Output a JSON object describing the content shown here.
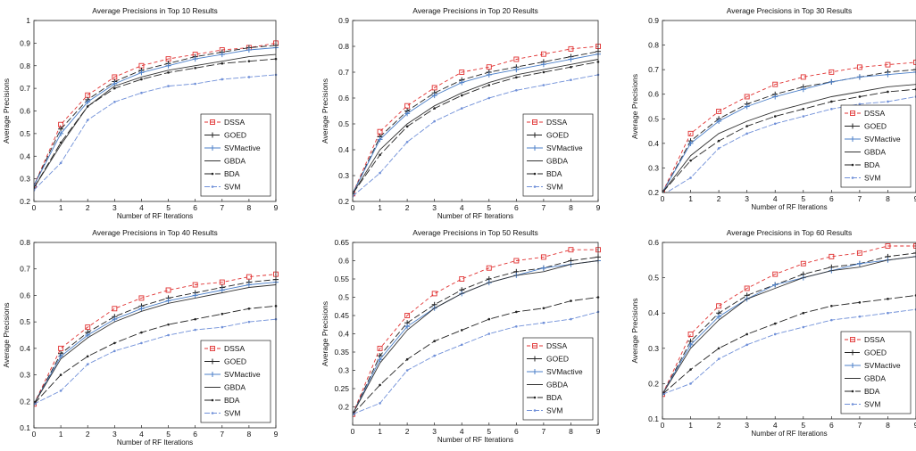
{
  "chart_data": [
    {
      "type": "line",
      "title": "Average Precisions in Top 10 Results",
      "xlabel": "Number of RF Iterations",
      "ylabel": "Average Precisions",
      "xlim": [
        0,
        9
      ],
      "ylim": [
        0.2,
        1
      ],
      "xticks": [
        "0",
        "1",
        "2",
        "3",
        "4",
        "5",
        "6",
        "7",
        "8",
        "9"
      ],
      "yticks": [
        "0.2",
        "0.3",
        "0.4",
        "0.5",
        "0.6",
        "0.7",
        "0.8",
        "0.9",
        "1"
      ],
      "legend_position": "bottom-right",
      "x": [
        0,
        1,
        2,
        3,
        4,
        5,
        6,
        7,
        8,
        9
      ],
      "series": [
        {
          "name": "DSSA",
          "color": "#e03030",
          "values": [
            0.27,
            0.54,
            0.67,
            0.75,
            0.8,
            0.83,
            0.85,
            0.87,
            0.88,
            0.9
          ]
        },
        {
          "name": "GOED",
          "color": "#222222",
          "values": [
            0.27,
            0.52,
            0.65,
            0.73,
            0.78,
            0.81,
            0.84,
            0.86,
            0.88,
            0.89
          ]
        },
        {
          "name": "SVMactive",
          "color": "#4b7fc8",
          "values": [
            0.27,
            0.5,
            0.64,
            0.72,
            0.77,
            0.8,
            0.83,
            0.85,
            0.87,
            0.88
          ]
        },
        {
          "name": "GBDA",
          "color": "#333333",
          "values": [
            0.26,
            0.45,
            0.62,
            0.71,
            0.75,
            0.78,
            0.8,
            0.82,
            0.84,
            0.85
          ]
        },
        {
          "name": "BDA",
          "color": "#222222",
          "values": [
            0.26,
            0.46,
            0.62,
            0.7,
            0.74,
            0.77,
            0.79,
            0.81,
            0.82,
            0.83
          ]
        },
        {
          "name": "SVM",
          "color": "#6f8fd8",
          "values": [
            0.25,
            0.37,
            0.56,
            0.64,
            0.68,
            0.71,
            0.72,
            0.74,
            0.75,
            0.76
          ]
        }
      ]
    },
    {
      "type": "line",
      "title": "Average Precisions in Top 20 Results",
      "xlabel": "Number of RF Iterations",
      "ylabel": "Average Precisions",
      "xlim": [
        0,
        9
      ],
      "ylim": [
        0.2,
        0.9
      ],
      "xticks": [
        "0",
        "1",
        "2",
        "3",
        "4",
        "5",
        "6",
        "7",
        "8",
        "9"
      ],
      "yticks": [
        "0.2",
        "0.3",
        "0.4",
        "0.5",
        "0.6",
        "0.7",
        "0.8",
        "0.9"
      ],
      "legend_position": "bottom-right",
      "x": [
        0,
        1,
        2,
        3,
        4,
        5,
        6,
        7,
        8,
        9
      ],
      "series": [
        {
          "name": "DSSA",
          "color": "#e03030",
          "values": [
            0.23,
            0.47,
            0.57,
            0.64,
            0.7,
            0.72,
            0.75,
            0.77,
            0.79,
            0.8
          ]
        },
        {
          "name": "GOED",
          "color": "#222222",
          "values": [
            0.23,
            0.45,
            0.55,
            0.62,
            0.67,
            0.7,
            0.72,
            0.74,
            0.76,
            0.78
          ]
        },
        {
          "name": "SVMactive",
          "color": "#4b7fc8",
          "values": [
            0.23,
            0.44,
            0.54,
            0.61,
            0.66,
            0.69,
            0.71,
            0.73,
            0.75,
            0.77
          ]
        },
        {
          "name": "GBDA",
          "color": "#333333",
          "values": [
            0.23,
            0.4,
            0.5,
            0.57,
            0.62,
            0.66,
            0.69,
            0.71,
            0.73,
            0.75
          ]
        },
        {
          "name": "BDA",
          "color": "#222222",
          "values": [
            0.23,
            0.38,
            0.49,
            0.56,
            0.61,
            0.65,
            0.68,
            0.7,
            0.72,
            0.74
          ]
        },
        {
          "name": "SVM",
          "color": "#6f8fd8",
          "values": [
            0.22,
            0.31,
            0.43,
            0.51,
            0.56,
            0.6,
            0.63,
            0.65,
            0.67,
            0.69
          ]
        }
      ]
    },
    {
      "type": "line",
      "title": "Average Precisions in Top 30 Results",
      "xlabel": "Number of RF Iterations",
      "ylabel": "Average Precisions",
      "xlim": [
        0,
        9
      ],
      "ylim": [
        0.2,
        0.9
      ],
      "xticks": [
        "0",
        "1",
        "2",
        "3",
        "4",
        "5",
        "6",
        "7",
        "8",
        "9"
      ],
      "yticks": [
        "0.2",
        "0.3",
        "0.4",
        "0.5",
        "0.6",
        "0.7",
        "0.8",
        "0.9"
      ],
      "legend_position": "bottom-right",
      "x": [
        0,
        1,
        2,
        3,
        4,
        5,
        6,
        7,
        8,
        9
      ],
      "series": [
        {
          "name": "DSSA",
          "color": "#e03030",
          "values": [
            0.2,
            0.44,
            0.53,
            0.59,
            0.64,
            0.67,
            0.69,
            0.71,
            0.72,
            0.73
          ]
        },
        {
          "name": "GOED",
          "color": "#222222",
          "values": [
            0.2,
            0.41,
            0.5,
            0.56,
            0.6,
            0.63,
            0.65,
            0.67,
            0.69,
            0.7
          ]
        },
        {
          "name": "SVMactive",
          "color": "#4b7fc8",
          "values": [
            0.2,
            0.4,
            0.49,
            0.55,
            0.59,
            0.62,
            0.65,
            0.67,
            0.68,
            0.69
          ]
        },
        {
          "name": "GBDA",
          "color": "#333333",
          "values": [
            0.2,
            0.35,
            0.44,
            0.49,
            0.53,
            0.56,
            0.59,
            0.61,
            0.63,
            0.64
          ]
        },
        {
          "name": "BDA",
          "color": "#222222",
          "values": [
            0.2,
            0.33,
            0.41,
            0.47,
            0.51,
            0.54,
            0.57,
            0.59,
            0.61,
            0.62
          ]
        },
        {
          "name": "SVM",
          "color": "#6f8fd8",
          "values": [
            0.19,
            0.26,
            0.38,
            0.44,
            0.48,
            0.51,
            0.54,
            0.56,
            0.57,
            0.59
          ]
        }
      ]
    },
    {
      "type": "line",
      "title": "Average Precisions in Top 40 Results",
      "xlabel": "Number of RF Iterations",
      "ylabel": "Average Precisions",
      "xlim": [
        0,
        9
      ],
      "ylim": [
        0.1,
        0.8
      ],
      "xticks": [
        "0",
        "1",
        "2",
        "3",
        "4",
        "5",
        "6",
        "7",
        "8",
        "9"
      ],
      "yticks": [
        "0.1",
        "0.2",
        "0.3",
        "0.4",
        "0.5",
        "0.6",
        "0.7",
        "0.8"
      ],
      "legend_position": "bottom-right",
      "x": [
        0,
        1,
        2,
        3,
        4,
        5,
        6,
        7,
        8,
        9
      ],
      "series": [
        {
          "name": "DSSA",
          "color": "#e03030",
          "values": [
            0.19,
            0.4,
            0.48,
            0.55,
            0.59,
            0.62,
            0.64,
            0.65,
            0.67,
            0.68
          ]
        },
        {
          "name": "GOED",
          "color": "#222222",
          "values": [
            0.19,
            0.38,
            0.46,
            0.52,
            0.56,
            0.59,
            0.61,
            0.63,
            0.65,
            0.66
          ]
        },
        {
          "name": "SVMactive",
          "color": "#4b7fc8",
          "values": [
            0.19,
            0.37,
            0.45,
            0.51,
            0.55,
            0.58,
            0.6,
            0.62,
            0.64,
            0.65
          ]
        },
        {
          "name": "GBDA",
          "color": "#333333",
          "values": [
            0.19,
            0.36,
            0.44,
            0.5,
            0.54,
            0.57,
            0.59,
            0.61,
            0.63,
            0.64
          ]
        },
        {
          "name": "BDA",
          "color": "#222222",
          "values": [
            0.19,
            0.3,
            0.37,
            0.42,
            0.46,
            0.49,
            0.51,
            0.53,
            0.55,
            0.56
          ]
        },
        {
          "name": "SVM",
          "color": "#6f8fd8",
          "values": [
            0.19,
            0.24,
            0.34,
            0.39,
            0.42,
            0.45,
            0.47,
            0.48,
            0.5,
            0.51
          ]
        }
      ]
    },
    {
      "type": "line",
      "title": "Average Precisions in Top 50 Results",
      "xlabel": "Number of RF Iterations",
      "ylabel": "Average Precisions",
      "xlim": [
        0,
        9
      ],
      "ylim": [
        0.15,
        0.65
      ],
      "xticks": [
        "0",
        "1",
        "2",
        "3",
        "4",
        "5",
        "6",
        "7",
        "8",
        "9"
      ],
      "yticks": [
        "0.2",
        "0.25",
        "0.3",
        "0.35",
        "0.4",
        "0.45",
        "0.5",
        "0.55",
        "0.6",
        "0.65"
      ],
      "legend_position": "bottom-right",
      "x": [
        0,
        1,
        2,
        3,
        4,
        5,
        6,
        7,
        8,
        9
      ],
      "series": [
        {
          "name": "DSSA",
          "color": "#e03030",
          "values": [
            0.18,
            0.36,
            0.45,
            0.51,
            0.55,
            0.58,
            0.6,
            0.61,
            0.63,
            0.63
          ]
        },
        {
          "name": "GOED",
          "color": "#222222",
          "values": [
            0.18,
            0.34,
            0.43,
            0.48,
            0.52,
            0.55,
            0.57,
            0.58,
            0.6,
            0.61
          ]
        },
        {
          "name": "SVMactive",
          "color": "#4b7fc8",
          "values": [
            0.18,
            0.33,
            0.42,
            0.47,
            0.51,
            0.54,
            0.56,
            0.58,
            0.59,
            0.6
          ]
        },
        {
          "name": "GBDA",
          "color": "#333333",
          "values": [
            0.18,
            0.32,
            0.41,
            0.47,
            0.51,
            0.54,
            0.56,
            0.57,
            0.59,
            0.6
          ]
        },
        {
          "name": "BDA",
          "color": "#222222",
          "values": [
            0.18,
            0.26,
            0.33,
            0.38,
            0.41,
            0.44,
            0.46,
            0.47,
            0.49,
            0.5
          ]
        },
        {
          "name": "SVM",
          "color": "#6f8fd8",
          "values": [
            0.18,
            0.21,
            0.3,
            0.34,
            0.37,
            0.4,
            0.42,
            0.43,
            0.44,
            0.46
          ]
        }
      ]
    },
    {
      "type": "line",
      "title": "Average Precisions in Top 60 Results",
      "xlabel": "Number of RF Iterations",
      "ylabel": "Average Precisions",
      "xlim": [
        0,
        9
      ],
      "ylim": [
        0.1,
        0.6
      ],
      "xticks": [
        "0",
        "1",
        "2",
        "3",
        "4",
        "5",
        "6",
        "7",
        "8",
        "9"
      ],
      "yticks": [
        "0.1",
        "0.2",
        "0.3",
        "0.4",
        "0.5",
        "0.6"
      ],
      "legend_position": "bottom-right",
      "x": [
        0,
        1,
        2,
        3,
        4,
        5,
        6,
        7,
        8,
        9
      ],
      "series": [
        {
          "name": "DSSA",
          "color": "#e03030",
          "values": [
            0.17,
            0.34,
            0.42,
            0.47,
            0.51,
            0.54,
            0.56,
            0.57,
            0.59,
            0.59
          ]
        },
        {
          "name": "GOED",
          "color": "#222222",
          "values": [
            0.17,
            0.32,
            0.4,
            0.45,
            0.48,
            0.51,
            0.53,
            0.54,
            0.56,
            0.57
          ]
        },
        {
          "name": "SVMactive",
          "color": "#4b7fc8",
          "values": [
            0.17,
            0.31,
            0.39,
            0.44,
            0.48,
            0.5,
            0.52,
            0.54,
            0.55,
            0.56
          ]
        },
        {
          "name": "GBDA",
          "color": "#333333",
          "values": [
            0.17,
            0.3,
            0.38,
            0.44,
            0.47,
            0.5,
            0.52,
            0.53,
            0.55,
            0.56
          ]
        },
        {
          "name": "BDA",
          "color": "#222222",
          "values": [
            0.17,
            0.24,
            0.3,
            0.34,
            0.37,
            0.4,
            0.42,
            0.43,
            0.44,
            0.45
          ]
        },
        {
          "name": "SVM",
          "color": "#6f8fd8",
          "values": [
            0.17,
            0.2,
            0.27,
            0.31,
            0.34,
            0.36,
            0.38,
            0.39,
            0.4,
            0.41
          ]
        }
      ]
    }
  ]
}
